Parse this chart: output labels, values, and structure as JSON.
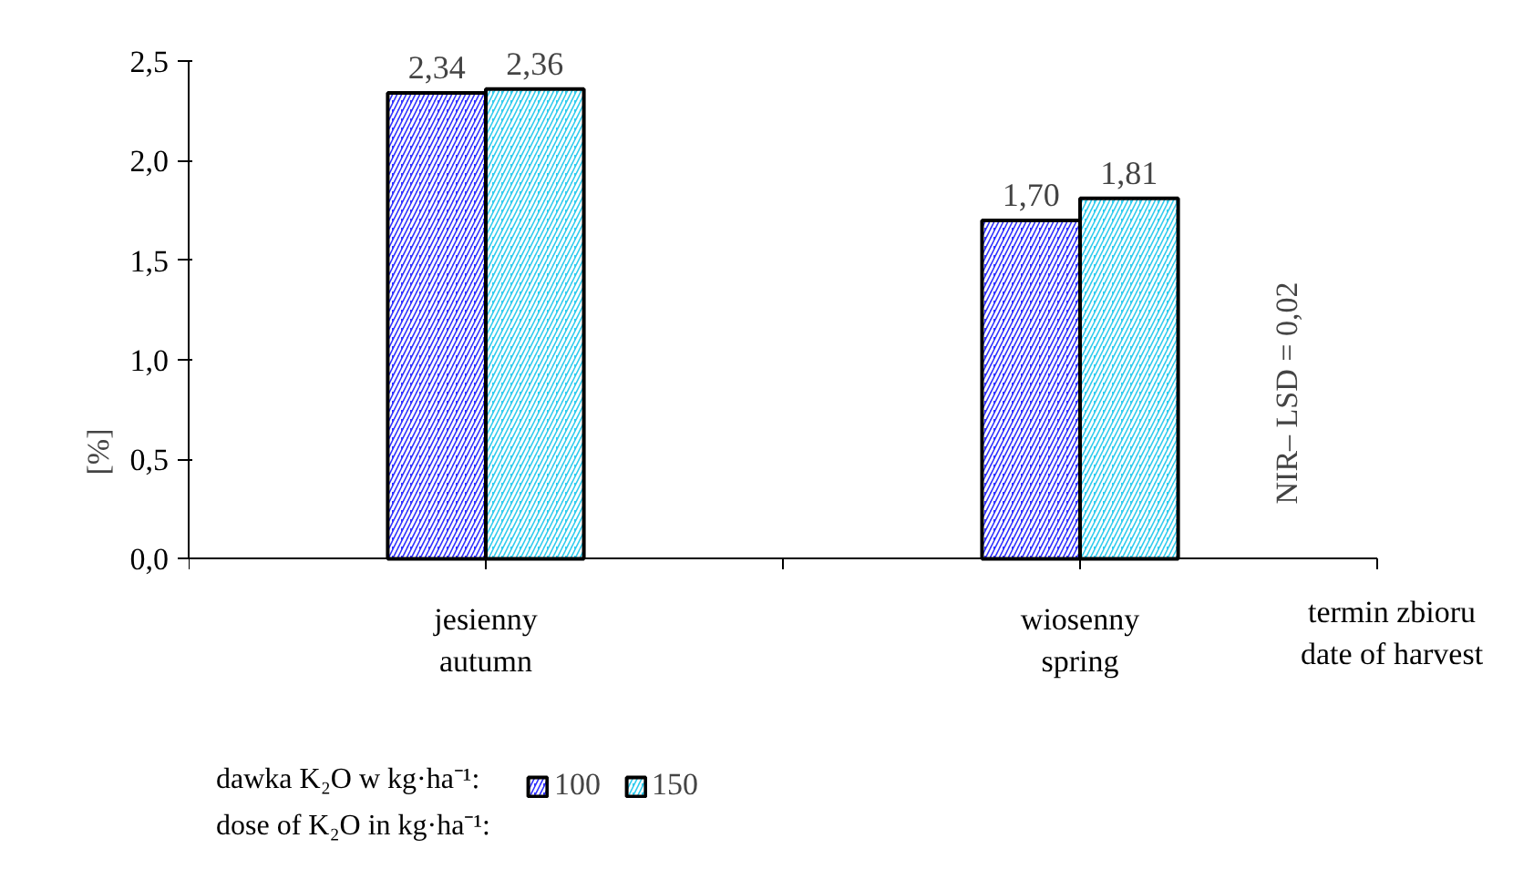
{
  "chart_data": {
    "type": "bar",
    "ylabel": "[%]",
    "xlabel": "termin zbioru\ndate of harvest",
    "categories": [
      "jesienny\nautumn",
      "wiosenny\nspring"
    ],
    "series": [
      {
        "name": "100",
        "color": "#3333ff",
        "values": [
          2.34,
          1.7
        ],
        "value_labels": [
          "2,34",
          "1,70"
        ]
      },
      {
        "name": "150",
        "color": "#33ccee",
        "values": [
          2.36,
          1.81
        ],
        "value_labels": [
          "2,36",
          "1,81"
        ]
      }
    ],
    "legend_title": "dawka K₂O w kg·ha⁻¹:\ndose of K₂O in kg·ha⁻¹:",
    "legend": "bottom",
    "grid": false,
    "ylim": [
      0,
      2.5
    ],
    "yticks": [
      {
        "value": 0,
        "label": "0,0"
      },
      {
        "value": 0.5,
        "label": "0,5"
      },
      {
        "value": 1,
        "label": "1,0"
      },
      {
        "value": 1.5,
        "label": "1,5"
      },
      {
        "value": 2,
        "label": "2,0"
      },
      {
        "value": 2.5,
        "label": "2,5"
      }
    ],
    "annotations": [
      "NIR– LSD = 0,02"
    ]
  }
}
